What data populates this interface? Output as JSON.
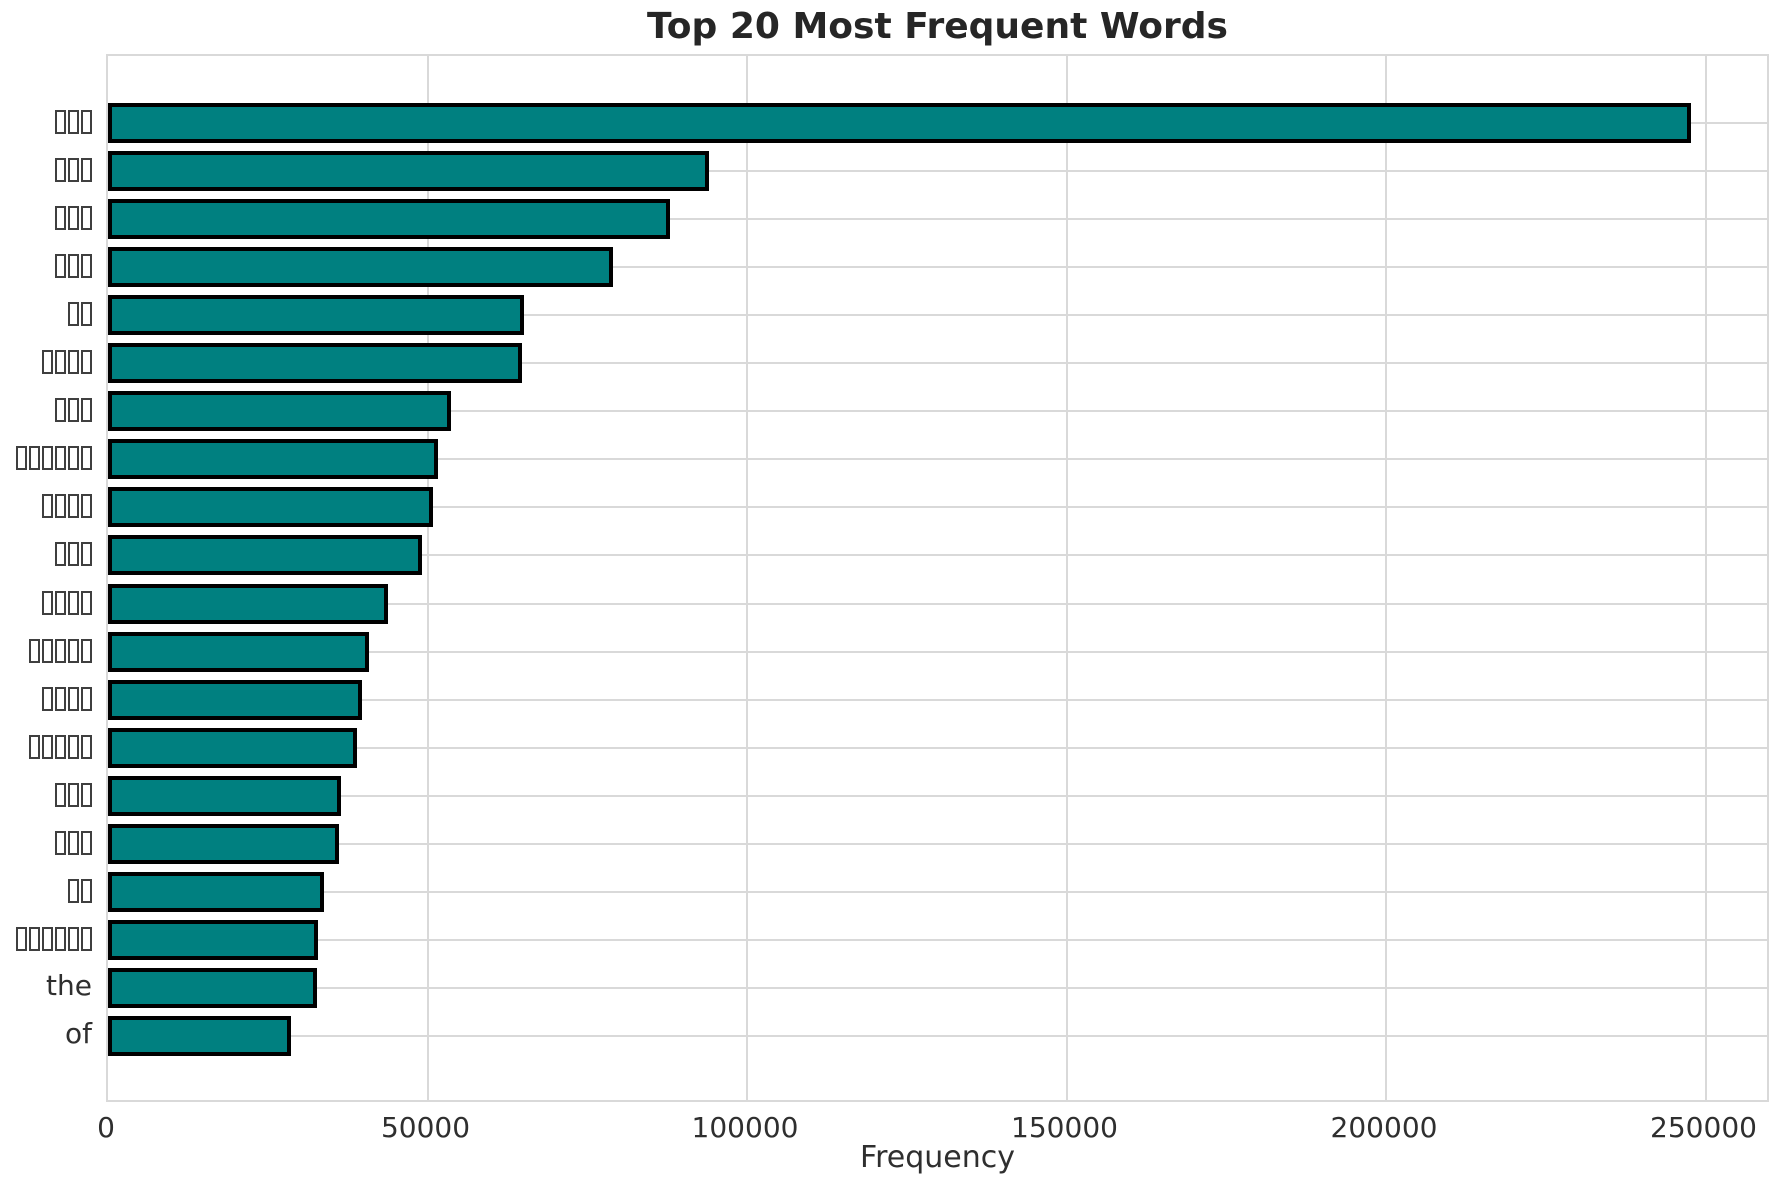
{
  "chart_data": {
    "type": "bar",
    "orientation": "horizontal",
    "title": "Top 20 Most Frequent Words",
    "xlabel": "Frequency",
    "ylabel": "",
    "xlim": [
      0,
      260000
    ],
    "x_ticks": [
      0,
      50000,
      100000,
      150000,
      200000,
      250000
    ],
    "x_tick_labels": [
      "0",
      "50000",
      "100000",
      "150000",
      "200000",
      "250000"
    ],
    "grid": true,
    "legend": false,
    "bar_fill_color": "#008080",
    "bar_edge_color": "#000000",
    "categories": [
      {
        "label": "□□□",
        "missing_glyphs": true,
        "box_count": 3
      },
      {
        "label": "□□□",
        "missing_glyphs": true,
        "box_count": 3
      },
      {
        "label": "□□□",
        "missing_glyphs": true,
        "box_count": 3
      },
      {
        "label": "□□□",
        "missing_glyphs": true,
        "box_count": 3
      },
      {
        "label": "□□",
        "missing_glyphs": true,
        "box_count": 2
      },
      {
        "label": "□□□□",
        "missing_glyphs": true,
        "box_count": 4
      },
      {
        "label": "□□□",
        "missing_glyphs": true,
        "box_count": 3
      },
      {
        "label": "□□□□□□",
        "missing_glyphs": true,
        "box_count": 6
      },
      {
        "label": "□□□□",
        "missing_glyphs": true,
        "box_count": 4
      },
      {
        "label": "□□□",
        "missing_glyphs": true,
        "box_count": 3
      },
      {
        "label": "□□□□",
        "missing_glyphs": true,
        "box_count": 4
      },
      {
        "label": "□□□□□",
        "missing_glyphs": true,
        "box_count": 5
      },
      {
        "label": "□□□□",
        "missing_glyphs": true,
        "box_count": 4
      },
      {
        "label": "□□□□□",
        "missing_glyphs": true,
        "box_count": 5
      },
      {
        "label": "□□□",
        "missing_glyphs": true,
        "box_count": 3
      },
      {
        "label": "□□□",
        "missing_glyphs": true,
        "box_count": 3
      },
      {
        "label": "□□",
        "missing_glyphs": true,
        "box_count": 2
      },
      {
        "label": "□□□□□□",
        "missing_glyphs": true,
        "box_count": 6
      },
      {
        "label": "the",
        "missing_glyphs": false,
        "box_count": 0
      },
      {
        "label": "of",
        "missing_glyphs": false,
        "box_count": 0
      }
    ],
    "values": [
      247800,
      94000,
      88000,
      79000,
      65100,
      64800,
      53600,
      51600,
      50800,
      49200,
      43800,
      40800,
      39800,
      38900,
      36400,
      36100,
      33800,
      32900,
      32700,
      28700
    ]
  },
  "colors": {
    "bar_fill": "#008080",
    "bar_edge": "#000000",
    "grid": "#d9d9d9",
    "tick_text": "#2f2f2f",
    "title_text": "#262626",
    "background": "#ffffff"
  }
}
